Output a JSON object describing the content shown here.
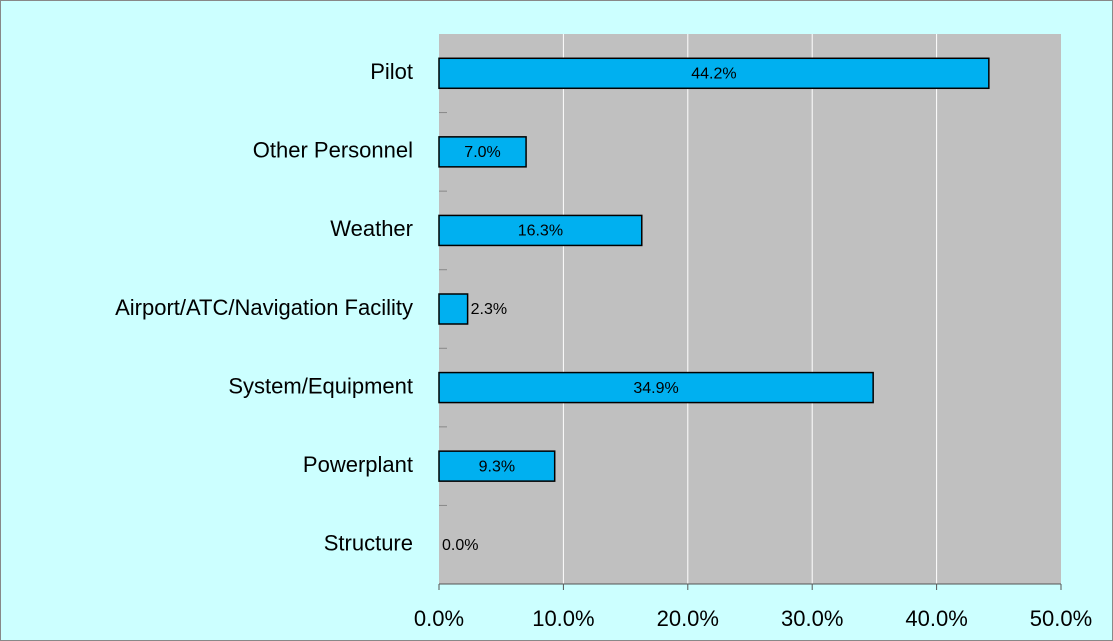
{
  "chart_data": {
    "type": "hbar",
    "categories": [
      "Pilot",
      "Other Personnel",
      "Weather",
      "Airport/ATC/Navigation Facility",
      "System/Equipment",
      "Powerplant",
      "Structure"
    ],
    "values": [
      44.2,
      7.0,
      16.3,
      2.3,
      34.9,
      9.3,
      0.0
    ],
    "value_labels": [
      "44.2%",
      "7.0%",
      "16.3%",
      "2.3%",
      "34.9%",
      "9.3%",
      "0.0%"
    ],
    "color": "#00b0f0",
    "xlim": [
      0,
      50
    ],
    "xticks": [
      {
        "value": 0,
        "label": "0.0%"
      },
      {
        "value": 10,
        "label": "10.0%"
      },
      {
        "value": 20,
        "label": "20.0%"
      },
      {
        "value": 30,
        "label": "30.0%"
      },
      {
        "value": 40,
        "label": "40.0%"
      },
      {
        "value": 50,
        "label": "50.0%"
      }
    ],
    "grid": true
  }
}
